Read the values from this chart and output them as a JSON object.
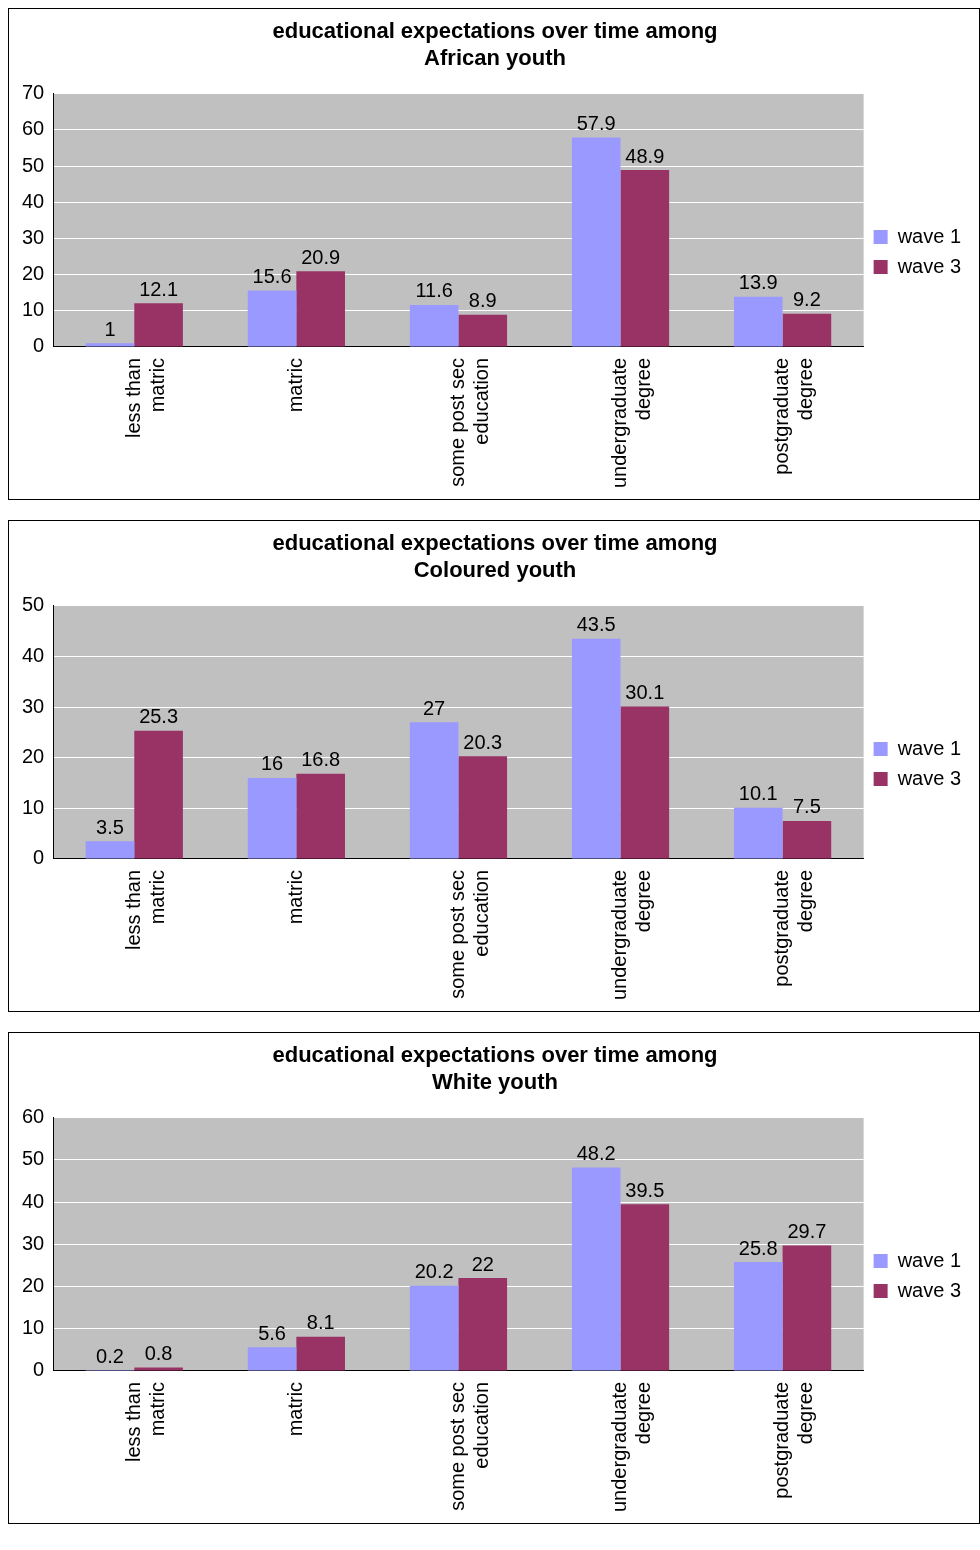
{
  "chart_data": [
    {
      "type": "bar",
      "title": "educational expectations over time among African youth",
      "categories": [
        "less than matric",
        "matric",
        "some post sec education",
        "undergraduate degree",
        "postgraduate degree"
      ],
      "series": [
        {
          "name": "wave 1",
          "color": "#9999ff",
          "values": [
            1,
            15.6,
            11.6,
            57.9,
            13.9
          ]
        },
        {
          "name": "wave 3",
          "color": "#993366",
          "values": [
            12.1,
            20.9,
            8.9,
            48.9,
            9.2
          ]
        }
      ],
      "ylim": [
        0,
        70
      ],
      "yticks": [
        0,
        10,
        20,
        30,
        40,
        50,
        60,
        70
      ],
      "grid": "y",
      "legend": "right",
      "data_labels": true
    },
    {
      "type": "bar",
      "title": "educational expectations over time among Coloured youth",
      "categories": [
        "less than matric",
        "matric",
        "some post sec education",
        "undergraduate degree",
        "postgraduate degree"
      ],
      "series": [
        {
          "name": "wave 1",
          "color": "#9999ff",
          "values": [
            3.5,
            16,
            27,
            43.5,
            10.1
          ]
        },
        {
          "name": "wave 3",
          "color": "#993366",
          "values": [
            25.3,
            16.8,
            20.3,
            30.1,
            7.5
          ]
        }
      ],
      "ylim": [
        0,
        50
      ],
      "yticks": [
        0,
        10,
        20,
        30,
        40,
        50
      ],
      "grid": "y",
      "legend": "right",
      "data_labels": true
    },
    {
      "type": "bar",
      "title": "educational expectations over time among White youth",
      "categories": [
        "less than matric",
        "matric",
        "some post sec education",
        "undergraduate degree",
        "postgraduate degree"
      ],
      "series": [
        {
          "name": "wave 1",
          "color": "#9999ff",
          "values": [
            0.2,
            5.6,
            20.2,
            48.2,
            25.8
          ]
        },
        {
          "name": "wave 3",
          "color": "#993366",
          "values": [
            0.8,
            8.1,
            22,
            39.5,
            29.7
          ]
        }
      ],
      "ylim": [
        0,
        60
      ],
      "yticks": [
        0,
        10,
        20,
        30,
        40,
        50,
        60
      ],
      "grid": "y",
      "legend": "right",
      "data_labels": true
    }
  ]
}
